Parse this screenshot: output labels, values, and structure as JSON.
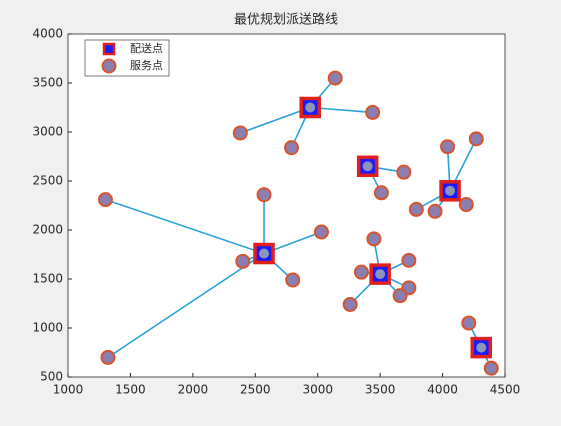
{
  "chart_data": {
    "type": "scatter",
    "title": "最优规划派送路线",
    "xlim": [
      1000,
      4500
    ],
    "xticks": [
      1000,
      1500,
      2000,
      2500,
      3000,
      3500,
      4000,
      4500
    ],
    "ylim": [
      500,
      4000
    ],
    "yticks": [
      500,
      1000,
      1500,
      2000,
      2500,
      3000,
      3500,
      4000
    ],
    "legend": "upper left",
    "line_color": "#2aa2d8",
    "series": [
      {
        "name": "配送点",
        "marker": "square",
        "color": "#1a1aff",
        "edge": "#e0201b",
        "x": [
          2940,
          3400,
          4060,
          2570,
          3500,
          4310
        ],
        "values": [
          3250,
          2650,
          2400,
          1760,
          1550,
          800
        ]
      },
      {
        "name": "服务点",
        "marker": "circle",
        "color": "#8a7fb0",
        "edge": "#d9532b",
        "x": [
          3140,
          3440,
          2380,
          2790,
          3690,
          3510,
          4040,
          4270,
          3790,
          3940,
          4190,
          1300,
          2570,
          3030,
          2400,
          2800,
          1320,
          3450,
          3350,
          3730,
          3730,
          3660,
          3260,
          4210,
          4390
        ],
        "values": [
          3550,
          3200,
          2990,
          2840,
          2590,
          2380,
          2850,
          2930,
          2210,
          2190,
          2260,
          2310,
          2360,
          1980,
          1680,
          1490,
          700,
          1910,
          1570,
          1690,
          1410,
          1330,
          1240,
          1050,
          590
        ]
      }
    ],
    "routes": [
      [
        0,
        1,
        2,
        3
      ],
      [
        4,
        5
      ],
      [
        6,
        7,
        8,
        9,
        10
      ],
      [
        11,
        12,
        13,
        14,
        15,
        16
      ],
      [
        17,
        18,
        19,
        20,
        21,
        22
      ],
      [
        23,
        24
      ]
    ]
  }
}
